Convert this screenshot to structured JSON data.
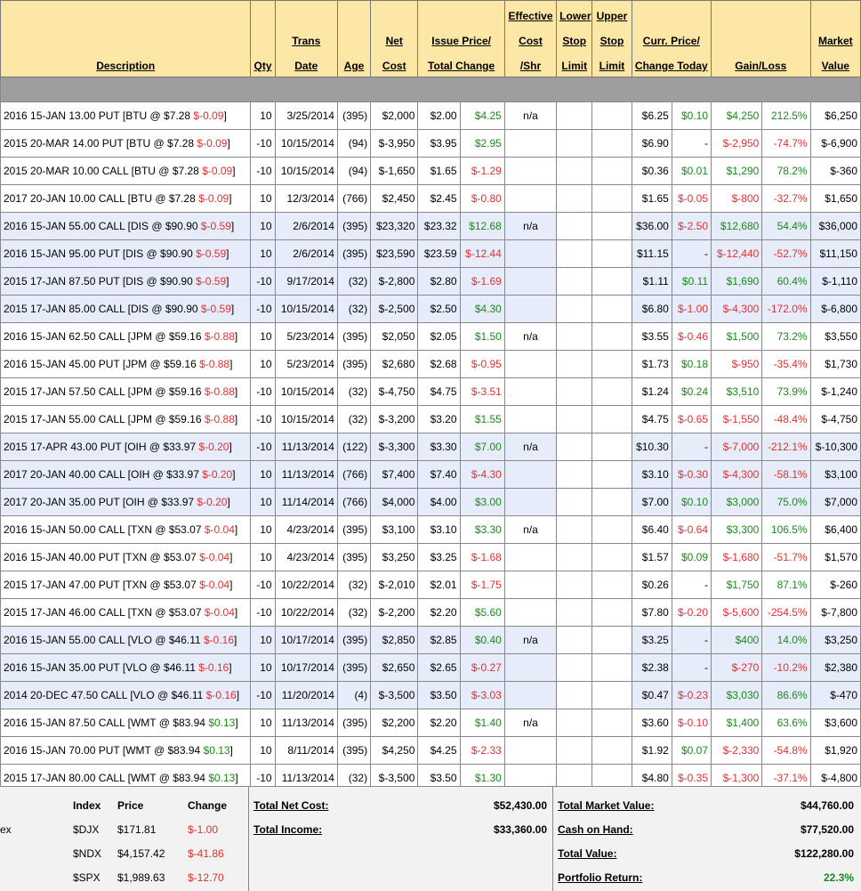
{
  "header": {
    "description": "Description",
    "qty": "Qty",
    "trans_date_1": "Trans",
    "trans_date_2": "Date",
    "age": "Age",
    "net_cost_1": "Net",
    "net_cost_2": "Cost",
    "issue_price_1": "Issue Price/",
    "issue_price_2": "Total Change",
    "eff_cost_1": "Effective",
    "eff_cost_2": "Cost",
    "eff_cost_3": "/Shr",
    "lower_stop_1": "Lower",
    "lower_stop_2": "Stop",
    "lower_stop_3": "Limit",
    "upper_stop_1": "Upper",
    "upper_stop_2": "Stop",
    "upper_stop_3": "Limit",
    "curr_price_1": "Curr. Price/",
    "curr_price_2": "Change Today",
    "gain_loss": "Gain/Loss",
    "market_value_1": "Market",
    "market_value_2": "Value"
  },
  "rows": [
    {
      "d": "2016 15-JAN 13.00 PUT [BTU @ $7.28 ",
      "dc": "$-0.09",
      "cls": "",
      "q": "10",
      "dt": "3/25/2014",
      "age": "(395)",
      "nc": "$2,000",
      "ip": "$2.00",
      "tc": "$4.25",
      "tcs": "pos",
      "eff": "n/a",
      "cp": "$6.25",
      "ct": "$0.10",
      "cts": "pos",
      "gl": "$4,250",
      "gls": "pos",
      "gp": "212.5%",
      "gps": "pos",
      "mv": "$6,250"
    },
    {
      "d": "2015 20-MAR 14.00 PUT [BTU @ $7.28 ",
      "dc": "$-0.09",
      "cls": "",
      "q": "-10",
      "dt": "10/15/2014",
      "age": "(94)",
      "nc": "$-3,950",
      "ip": "$3.95",
      "tc": "$2.95",
      "tcs": "pos",
      "eff": "",
      "cp": "$6.90",
      "ct": "-",
      "cts": "blk",
      "gl": "$-2,950",
      "gls": "neg",
      "gp": "-74.7%",
      "gps": "neg",
      "mv": "$-6,900"
    },
    {
      "d": "2015 20-MAR 10.00 CALL [BTU @ $7.28 ",
      "dc": "$-0.09",
      "cls": "",
      "q": "-10",
      "dt": "10/15/2014",
      "age": "(94)",
      "nc": "$-1,650",
      "ip": "$1.65",
      "tc": "$-1.29",
      "tcs": "neg",
      "eff": "",
      "cp": "$0.36",
      "ct": "$0.01",
      "cts": "pos",
      "gl": "$1,290",
      "gls": "pos",
      "gp": "78.2%",
      "gps": "pos",
      "mv": "$-360"
    },
    {
      "d": "2017 20-JAN 10.00 CALL [BTU @ $7.28 ",
      "dc": "$-0.09",
      "cls": "",
      "q": "10",
      "dt": "12/3/2014",
      "age": "(766)",
      "nc": "$2,450",
      "ip": "$2.45",
      "tc": "$-0.80",
      "tcs": "neg",
      "eff": "",
      "cp": "$1.65",
      "ct": "$-0.05",
      "cts": "neg",
      "gl": "$-800",
      "gls": "neg",
      "gp": "-32.7%",
      "gps": "neg",
      "mv": "$1,650"
    },
    {
      "d": "2016 15-JAN 55.00 CALL [DIS @ $90.90 ",
      "dc": "$-0.59",
      "cls": "grp-b",
      "q": "10",
      "dt": "2/6/2014",
      "age": "(395)",
      "nc": "$23,320",
      "ip": "$23.32",
      "tc": "$12.68",
      "tcs": "pos",
      "eff": "n/a",
      "cp": "$36.00",
      "ct": "$-2.50",
      "cts": "neg",
      "gl": "$12,680",
      "gls": "pos",
      "gp": "54.4%",
      "gps": "pos",
      "mv": "$36,000"
    },
    {
      "d": "2016 15-JAN 95.00 PUT [DIS @ $90.90 ",
      "dc": "$-0.59",
      "cls": "grp-b",
      "q": "10",
      "dt": "2/6/2014",
      "age": "(395)",
      "nc": "$23,590",
      "ip": "$23.59",
      "tc": "$-12.44",
      "tcs": "neg",
      "eff": "",
      "cp": "$11.15",
      "ct": "-",
      "cts": "blk",
      "gl": "$-12,440",
      "gls": "neg",
      "gp": "-52.7%",
      "gps": "neg",
      "mv": "$11,150"
    },
    {
      "d": "2015 17-JAN 87.50 PUT [DIS @ $90.90 ",
      "dc": "$-0.59",
      "cls": "grp-b",
      "q": "-10",
      "dt": "9/17/2014",
      "age": "(32)",
      "nc": "$-2,800",
      "ip": "$2.80",
      "tc": "$-1.69",
      "tcs": "neg",
      "eff": "",
      "cp": "$1.11",
      "ct": "$0.11",
      "cts": "pos",
      "gl": "$1,690",
      "gls": "pos",
      "gp": "60.4%",
      "gps": "pos",
      "mv": "$-1,110"
    },
    {
      "d": "2015 17-JAN 85.00 CALL [DIS @ $90.90 ",
      "dc": "$-0.59",
      "cls": "grp-b",
      "q": "-10",
      "dt": "10/15/2014",
      "age": "(32)",
      "nc": "$-2,500",
      "ip": "$2.50",
      "tc": "$4.30",
      "tcs": "pos",
      "eff": "",
      "cp": "$6.80",
      "ct": "$-1.00",
      "cts": "neg",
      "gl": "$-4,300",
      "gls": "neg",
      "gp": "-172.0%",
      "gps": "neg",
      "mv": "$-6,800"
    },
    {
      "d": "2016 15-JAN 62.50 CALL [JPM @ $59.16 ",
      "dc": "$-0.88",
      "cls": "",
      "q": "10",
      "dt": "5/23/2014",
      "age": "(395)",
      "nc": "$2,050",
      "ip": "$2.05",
      "tc": "$1.50",
      "tcs": "pos",
      "eff": "n/a",
      "cp": "$3.55",
      "ct": "$-0.46",
      "cts": "neg",
      "gl": "$1,500",
      "gls": "pos",
      "gp": "73.2%",
      "gps": "pos",
      "mv": "$3,550"
    },
    {
      "d": "2016 15-JAN 45.00 PUT [JPM @ $59.16 ",
      "dc": "$-0.88",
      "cls": "",
      "q": "10",
      "dt": "5/23/2014",
      "age": "(395)",
      "nc": "$2,680",
      "ip": "$2.68",
      "tc": "$-0.95",
      "tcs": "neg",
      "eff": "",
      "cp": "$1.73",
      "ct": "$0.18",
      "cts": "pos",
      "gl": "$-950",
      "gls": "neg",
      "gp": "-35.4%",
      "gps": "neg",
      "mv": "$1,730"
    },
    {
      "d": "2015 17-JAN 57.50 CALL [JPM @ $59.16 ",
      "dc": "$-0.88",
      "cls": "",
      "q": "-10",
      "dt": "10/15/2014",
      "age": "(32)",
      "nc": "$-4,750",
      "ip": "$4.75",
      "tc": "$-3.51",
      "tcs": "neg",
      "eff": "",
      "cp": "$1.24",
      "ct": "$0.24",
      "cts": "pos",
      "gl": "$3,510",
      "gls": "pos",
      "gp": "73.9%",
      "gps": "pos",
      "mv": "$-1,240"
    },
    {
      "d": "2015 17-JAN 55.00 CALL [JPM @ $59.16 ",
      "dc": "$-0.88",
      "cls": "",
      "q": "-10",
      "dt": "10/15/2014",
      "age": "(32)",
      "nc": "$-3,200",
      "ip": "$3.20",
      "tc": "$1.55",
      "tcs": "pos",
      "eff": "",
      "cp": "$4.75",
      "ct": "$-0.65",
      "cts": "neg",
      "gl": "$-1,550",
      "gls": "neg",
      "gp": "-48.4%",
      "gps": "neg",
      "mv": "$-4,750"
    },
    {
      "d": "2015 17-APR 43.00 PUT [OIH @ $33.97 ",
      "dc": "$-0.20",
      "cls": "grp-b",
      "q": "-10",
      "dt": "11/13/2014",
      "age": "(122)",
      "nc": "$-3,300",
      "ip": "$3.30",
      "tc": "$7.00",
      "tcs": "pos",
      "eff": "n/a",
      "cp": "$10.30",
      "ct": "-",
      "cts": "blk",
      "gl": "$-7,000",
      "gls": "neg",
      "gp": "-212.1%",
      "gps": "neg",
      "mv": "$-10,300"
    },
    {
      "d": "2017 20-JAN 40.00 CALL [OIH @ $33.97 ",
      "dc": "$-0.20",
      "cls": "grp-b",
      "q": "10",
      "dt": "11/13/2014",
      "age": "(766)",
      "nc": "$7,400",
      "ip": "$7.40",
      "tc": "$-4.30",
      "tcs": "neg",
      "eff": "",
      "cp": "$3.10",
      "ct": "$-0.30",
      "cts": "neg",
      "gl": "$-4,300",
      "gls": "neg",
      "gp": "-58.1%",
      "gps": "neg",
      "mv": "$3,100"
    },
    {
      "d": "2017 20-JAN 35.00 PUT [OIH @ $33.97 ",
      "dc": "$-0.20",
      "cls": "grp-b",
      "q": "10",
      "dt": "11/14/2014",
      "age": "(766)",
      "nc": "$4,000",
      "ip": "$4.00",
      "tc": "$3.00",
      "tcs": "pos",
      "eff": "",
      "cp": "$7.00",
      "ct": "$0.10",
      "cts": "pos",
      "gl": "$3,000",
      "gls": "pos",
      "gp": "75.0%",
      "gps": "pos",
      "mv": "$7,000"
    },
    {
      "d": "2016 15-JAN 50.00 CALL [TXN @ $53.07 ",
      "dc": "$-0.04",
      "cls": "",
      "q": "10",
      "dt": "4/23/2014",
      "age": "(395)",
      "nc": "$3,100",
      "ip": "$3.10",
      "tc": "$3.30",
      "tcs": "pos",
      "eff": "n/a",
      "cp": "$6.40",
      "ct": "$-0.64",
      "cts": "neg",
      "gl": "$3,300",
      "gls": "pos",
      "gp": "106.5%",
      "gps": "pos",
      "mv": "$6,400"
    },
    {
      "d": "2016 15-JAN 40.00 PUT [TXN @ $53.07 ",
      "dc": "$-0.04",
      "cls": "",
      "q": "10",
      "dt": "4/23/2014",
      "age": "(395)",
      "nc": "$3,250",
      "ip": "$3.25",
      "tc": "$-1.68",
      "tcs": "neg",
      "eff": "",
      "cp": "$1.57",
      "ct": "$0.09",
      "cts": "pos",
      "gl": "$-1,680",
      "gls": "neg",
      "gp": "-51.7%",
      "gps": "neg",
      "mv": "$1,570"
    },
    {
      "d": "2015 17-JAN 47.00 PUT [TXN @ $53.07 ",
      "dc": "$-0.04",
      "cls": "",
      "q": "-10",
      "dt": "10/22/2014",
      "age": "(32)",
      "nc": "$-2,010",
      "ip": "$2.01",
      "tc": "$-1.75",
      "tcs": "neg",
      "eff": "",
      "cp": "$0.26",
      "ct": "-",
      "cts": "blk",
      "gl": "$1,750",
      "gls": "pos",
      "gp": "87.1%",
      "gps": "pos",
      "mv": "$-260"
    },
    {
      "d": "2015 17-JAN 46.00 CALL [TXN @ $53.07 ",
      "dc": "$-0.04",
      "cls": "",
      "q": "-10",
      "dt": "10/22/2014",
      "age": "(32)",
      "nc": "$-2,200",
      "ip": "$2.20",
      "tc": "$5.60",
      "tcs": "pos",
      "eff": "",
      "cp": "$7.80",
      "ct": "$-0.20",
      "cts": "neg",
      "gl": "$-5,600",
      "gls": "neg",
      "gp": "-254.5%",
      "gps": "neg",
      "mv": "$-7,800"
    },
    {
      "d": "2016 15-JAN 55.00 CALL [VLO @ $46.11 ",
      "dc": "$-0.16",
      "cls": "grp-b",
      "q": "10",
      "dt": "10/17/2014",
      "age": "(395)",
      "nc": "$2,850",
      "ip": "$2.85",
      "tc": "$0.40",
      "tcs": "pos",
      "eff": "n/a",
      "cp": "$3.25",
      "ct": "-",
      "cts": "blk",
      "gl": "$400",
      "gls": "pos",
      "gp": "14.0%",
      "gps": "pos",
      "mv": "$3,250"
    },
    {
      "d": "2016 15-JAN 35.00 PUT [VLO @ $46.11 ",
      "dc": "$-0.16",
      "cls": "grp-b",
      "q": "10",
      "dt": "10/17/2014",
      "age": "(395)",
      "nc": "$2,650",
      "ip": "$2.65",
      "tc": "$-0.27",
      "tcs": "neg",
      "eff": "",
      "cp": "$2.38",
      "ct": "-",
      "cts": "blk",
      "gl": "$-270",
      "gls": "neg",
      "gp": "-10.2%",
      "gps": "neg",
      "mv": "$2,380"
    },
    {
      "d": "2014 20-DEC 47.50 CALL [VLO @ $46.11 ",
      "dc": "$-0.16",
      "cls": "grp-b",
      "q": "-10",
      "dt": "11/20/2014",
      "age": "(4)",
      "nc": "$-3,500",
      "ip": "$3.50",
      "tc": "$-3.03",
      "tcs": "neg",
      "eff": "",
      "cp": "$0.47",
      "ct": "$-0.23",
      "cts": "neg",
      "gl": "$3,030",
      "gls": "pos",
      "gp": "86.6%",
      "gps": "pos",
      "mv": "$-470"
    },
    {
      "d": "2016 15-JAN 87.50 CALL [WMT @ $83.94 ",
      "dc": "$0.13",
      "cls": "",
      "q": "10",
      "dt": "11/13/2014",
      "age": "(395)",
      "nc": "$2,200",
      "ip": "$2.20",
      "tc": "$1.40",
      "tcs": "pos",
      "eff": "n/a",
      "cp": "$3.60",
      "ct": "$-0.10",
      "cts": "neg",
      "gl": "$1,400",
      "gls": "pos",
      "gp": "63.6%",
      "gps": "pos",
      "mv": "$3,600"
    },
    {
      "d": "2016 15-JAN 70.00 PUT [WMT @ $83.94 ",
      "dc": "$0.13",
      "cls": "",
      "q": "10",
      "dt": "8/11/2014",
      "age": "(395)",
      "nc": "$4,250",
      "ip": "$4.25",
      "tc": "$-2.33",
      "tcs": "neg",
      "eff": "",
      "cp": "$1.92",
      "ct": "$0.07",
      "cts": "pos",
      "gl": "$-2,330",
      "gls": "neg",
      "gp": "-54.8%",
      "gps": "neg",
      "mv": "$1,920"
    },
    {
      "d": "2015 17-JAN 80.00 CALL [WMT @ $83.94 ",
      "dc": "$0.13",
      "cls": "",
      "q": "-10",
      "dt": "11/13/2014",
      "age": "(32)",
      "nc": "$-3,500",
      "ip": "$3.50",
      "tc": "$1.30",
      "tcs": "pos",
      "eff": "",
      "cp": "$4.80",
      "ct": "$-0.35",
      "cts": "neg",
      "gl": "$-1,300",
      "gls": "neg",
      "gp": "-37.1%",
      "gps": "neg",
      "mv": "$-4,800"
    }
  ],
  "footer": {
    "ex_label": "ex",
    "index_header": "Index",
    "price_header": "Price",
    "change_header": "Change",
    "indices": [
      {
        "index": "$DJX",
        "price": "$171.81",
        "change": "$-1.00"
      },
      {
        "index": "$NDX",
        "price": "$4,157.42",
        "change": "$-41.86"
      },
      {
        "index": "$SPX",
        "price": "$1,989.63",
        "change": "$-12.70"
      }
    ],
    "total_net_cost_label": "Total Net Cost:",
    "total_net_cost": "$52,430.00",
    "total_income_label": "Total Income:",
    "total_income": "$33,360.00",
    "total_market_value_label": "Total Market Value:",
    "total_market_value": "$44,760.00",
    "cash_on_hand_label": "Cash on Hand:",
    "cash_on_hand": "$77,520.00",
    "total_value_label": "Total Value:",
    "total_value": "$122,280.00",
    "portfolio_return_label": "Portfolio Return:",
    "portfolio_return": "22.3%"
  },
  "colors": {
    "positive": "#1a8a1a",
    "negative": "#e03030",
    "header_bg": "#fde7a6",
    "group_bg": "#e6ecfa"
  }
}
